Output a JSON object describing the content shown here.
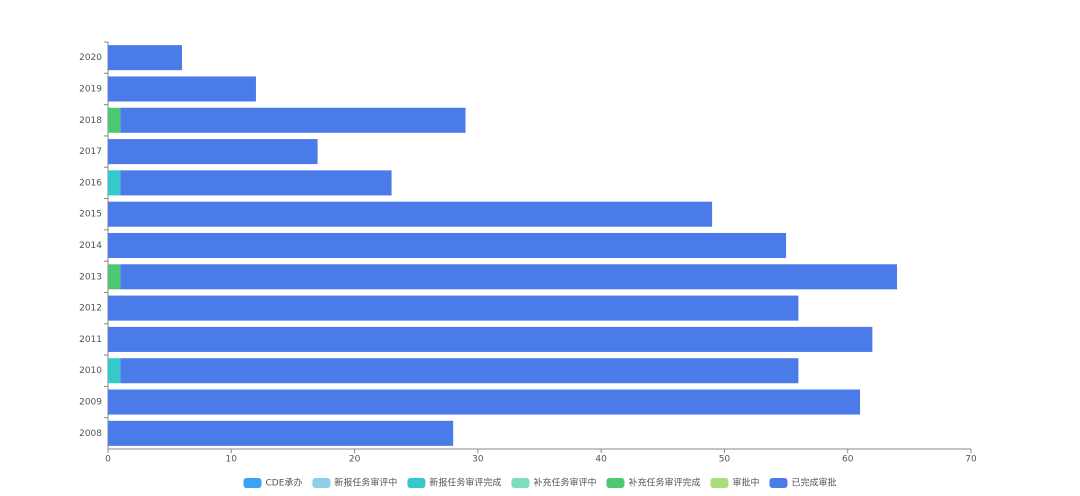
{
  "chart_data": {
    "type": "stacked-bar-horizontal",
    "categories": [
      "2020",
      "2019",
      "2018",
      "2017",
      "2016",
      "2015",
      "2014",
      "2013",
      "2012",
      "2011",
      "2010",
      "2009",
      "2008"
    ],
    "series": [
      {
        "name": "CDE承办",
        "color": "#3ba1f5",
        "values": [
          0,
          0,
          0,
          0,
          0,
          0,
          0,
          0,
          0,
          0,
          0,
          0,
          0
        ]
      },
      {
        "name": "新报任务审评中",
        "color": "#8dcfe9",
        "values": [
          0,
          0,
          0,
          0,
          0,
          0,
          0,
          0,
          0,
          0,
          0,
          0,
          0
        ]
      },
      {
        "name": "新报任务审评完成",
        "color": "#35c9cc",
        "values": [
          0,
          0,
          0,
          0,
          1,
          0,
          0,
          0,
          0,
          0,
          1,
          0,
          0
        ]
      },
      {
        "name": "补充任务审评中",
        "color": "#7edcc0",
        "values": [
          0,
          0,
          0,
          0,
          0,
          0,
          0,
          0,
          0,
          0,
          0,
          0,
          0
        ]
      },
      {
        "name": "补充任务审评完成",
        "color": "#4dc872",
        "values": [
          0,
          0,
          1,
          0,
          0,
          0,
          0,
          1,
          0,
          0,
          0,
          0,
          0
        ]
      },
      {
        "name": "审批中",
        "color": "#a8dd7c",
        "values": [
          0,
          0,
          0,
          0,
          0,
          0,
          0,
          0,
          0,
          0,
          0,
          0,
          0
        ]
      },
      {
        "name": "已完成审批",
        "color": "#4a7be8",
        "values": [
          6,
          12,
          28,
          17,
          22,
          49,
          55,
          63,
          56,
          62,
          55,
          61,
          28
        ]
      }
    ],
    "xlim": [
      0,
      70
    ],
    "xticks": [
      0,
      10,
      20,
      30,
      40,
      50,
      60,
      70
    ]
  }
}
